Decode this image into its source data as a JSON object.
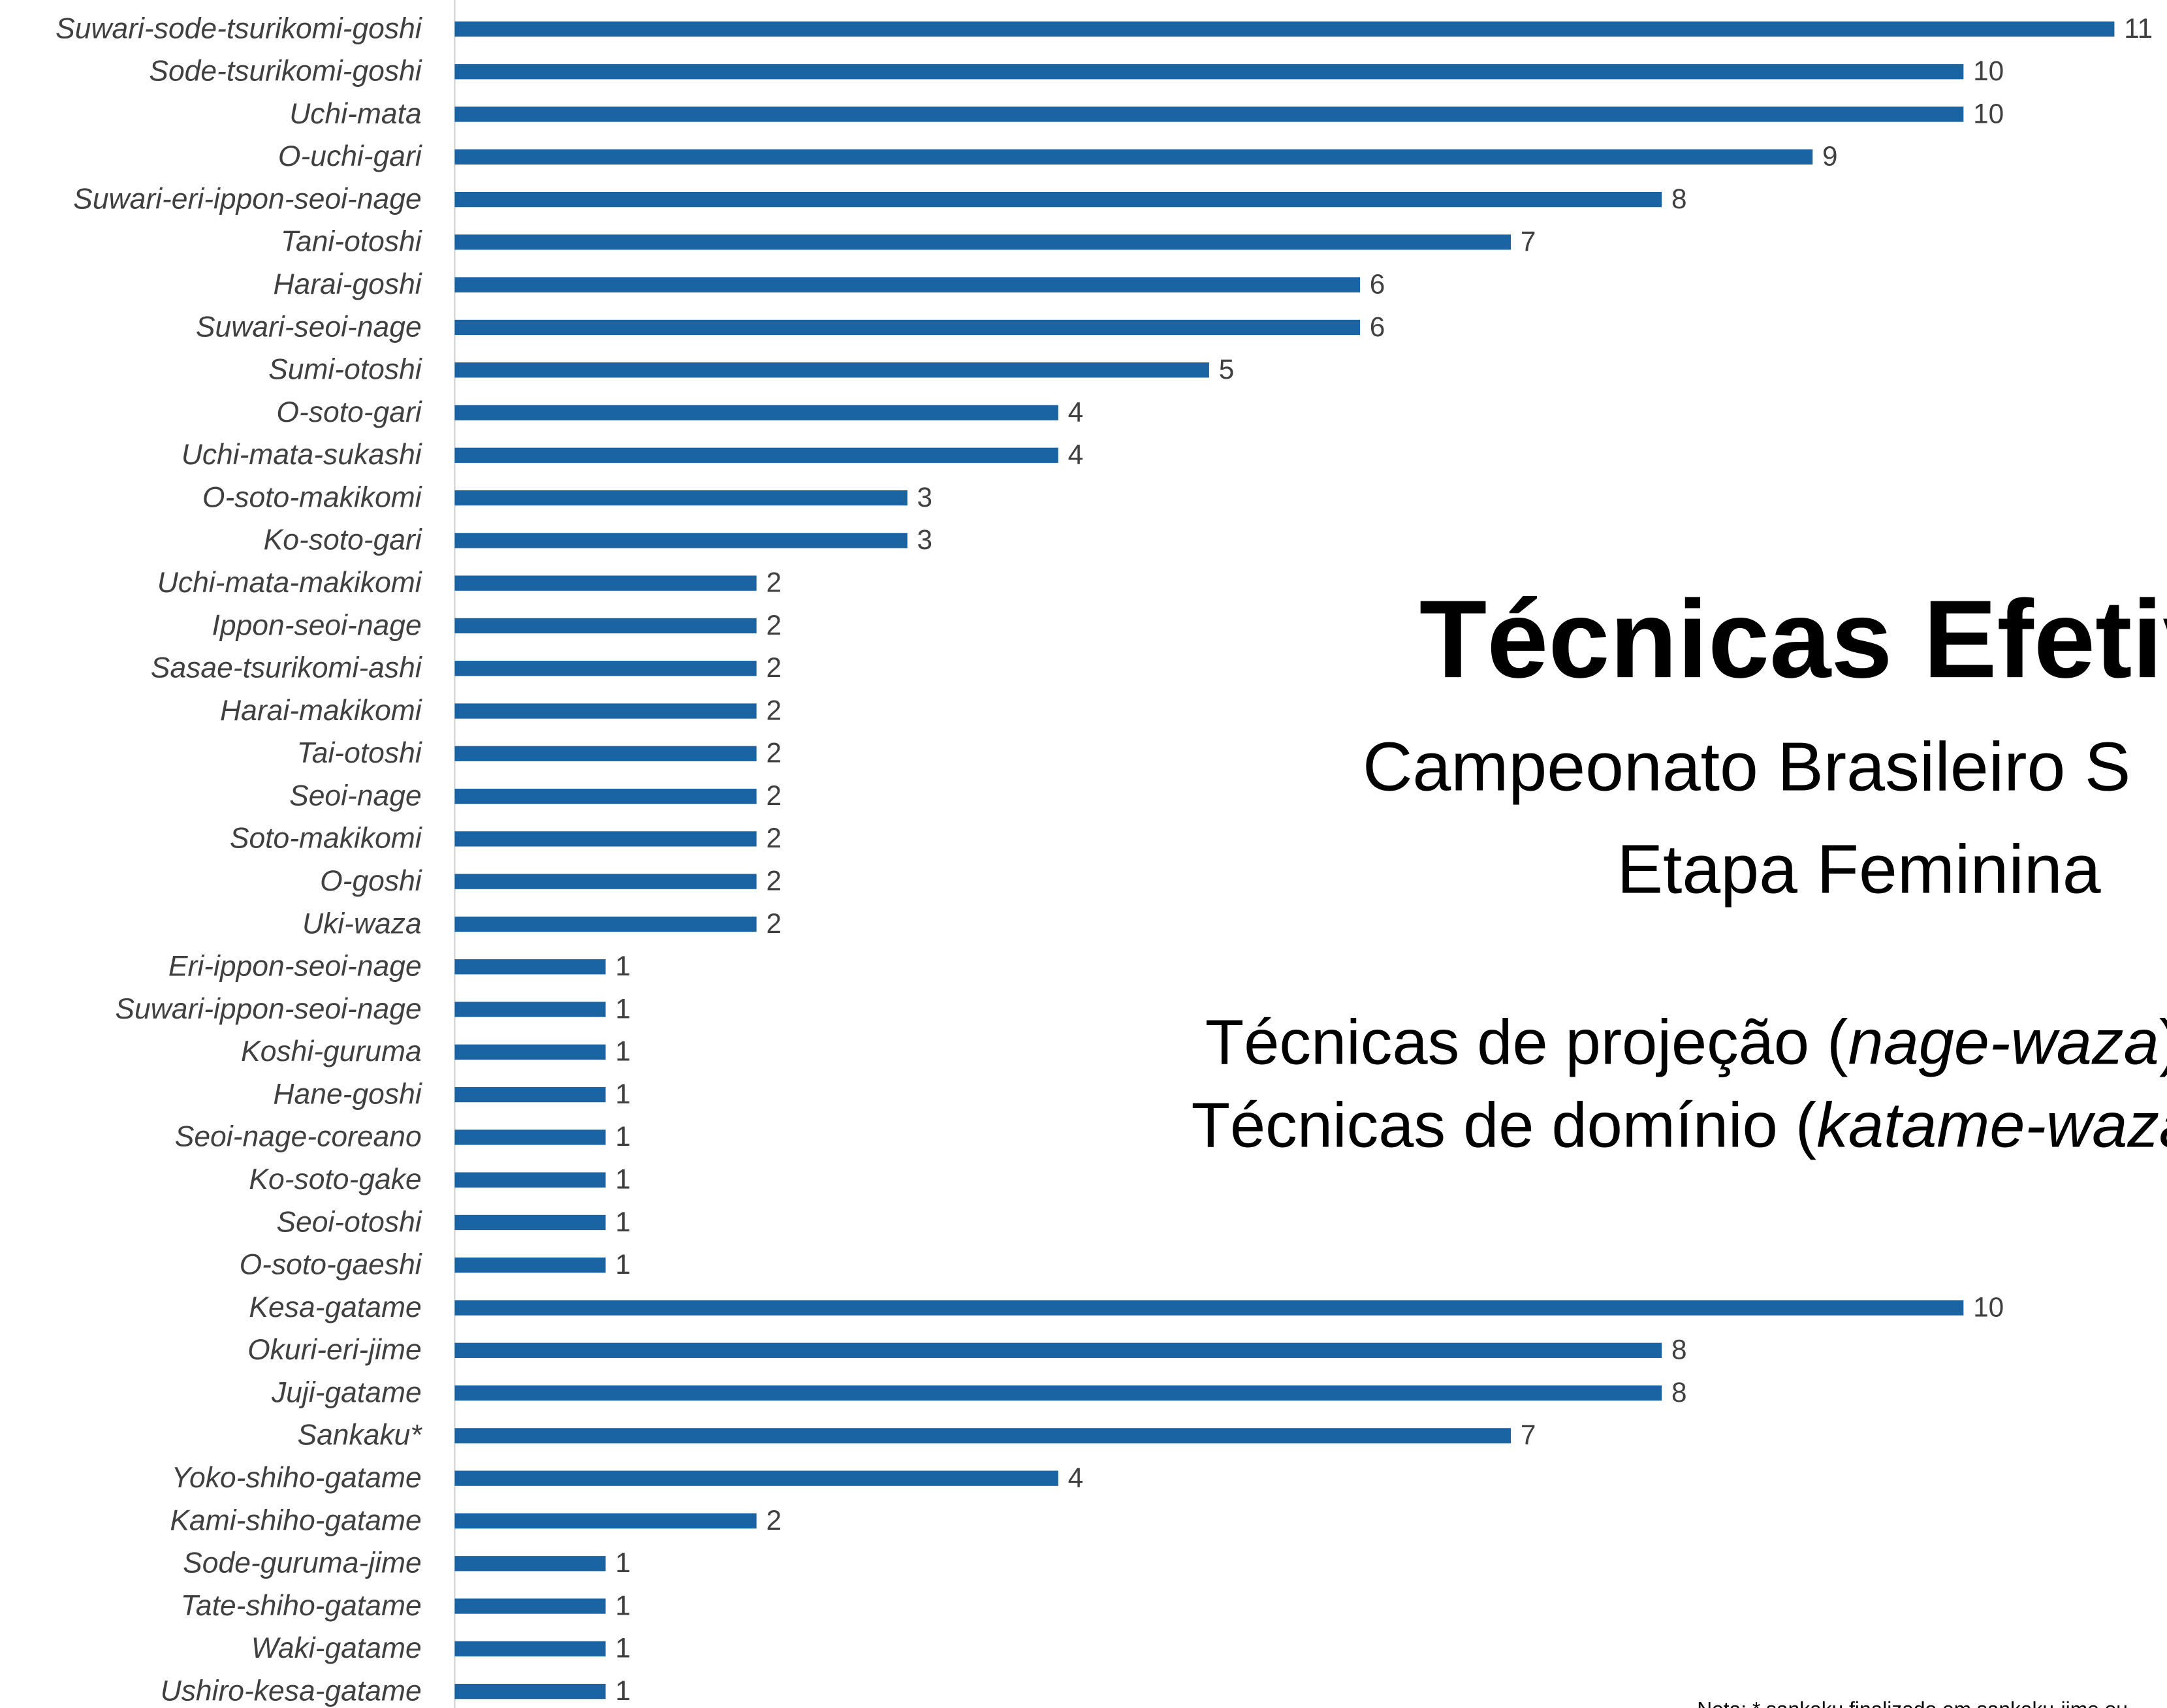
{
  "chart_data": {
    "type": "barh",
    "title": "Técnicas Efetiv",
    "subtitle_lines": [
      "Campeonato Brasileiro S",
      "Etapa Feminina"
    ],
    "annotations": [
      {
        "text": "Técnicas de projeção (",
        "italic": "nage-waza",
        "end": ")"
      },
      {
        "text": "Técnicas de domínio (",
        "italic": "katame-waza",
        "end": ""
      }
    ],
    "note": "Nota: * sankaku finalizado em sankaku-jime ou",
    "categories": [
      "Suwari-sode-tsurikomi-goshi",
      "Sode-tsurikomi-goshi",
      "Uchi-mata",
      "O-uchi-gari",
      "Suwari-eri-ippon-seoi-nage",
      "Tani-otoshi",
      "Harai-goshi",
      "Suwari-seoi-nage",
      "Sumi-otoshi",
      "O-soto-gari",
      "Uchi-mata-sukashi",
      "O-soto-makikomi",
      "Ko-soto-gari",
      "Uchi-mata-makikomi",
      "Ippon-seoi-nage",
      "Sasae-tsurikomi-ashi",
      "Harai-makikomi",
      "Tai-otoshi",
      "Seoi-nage",
      "Soto-makikomi",
      "O-goshi",
      "Uki-waza",
      "Eri-ippon-seoi-nage",
      "Suwari-ippon-seoi-nage",
      "Koshi-guruma",
      "Hane-goshi",
      "Seoi-nage-coreano",
      "Ko-soto-gake",
      "Seoi-otoshi",
      "O-soto-gaeshi",
      "Kesa-gatame",
      "Okuri-eri-jime",
      "Juji-gatame",
      "Sankaku*",
      "Yoko-shiho-gatame",
      "Kami-shiho-gatame",
      "Sode-guruma-jime",
      "Tate-shiho-gatame",
      "Waki-gatame",
      "Ushiro-kesa-gatame"
    ],
    "values": [
      11,
      10,
      10,
      9,
      8,
      7,
      6,
      6,
      5,
      4,
      4,
      3,
      3,
      2,
      2,
      2,
      2,
      2,
      2,
      2,
      2,
      2,
      1,
      1,
      1,
      1,
      1,
      1,
      1,
      1,
      10,
      8,
      8,
      7,
      4,
      2,
      1,
      1,
      1,
      1
    ],
    "color": "#1a64a4",
    "xlim": [
      0,
      11
    ]
  }
}
